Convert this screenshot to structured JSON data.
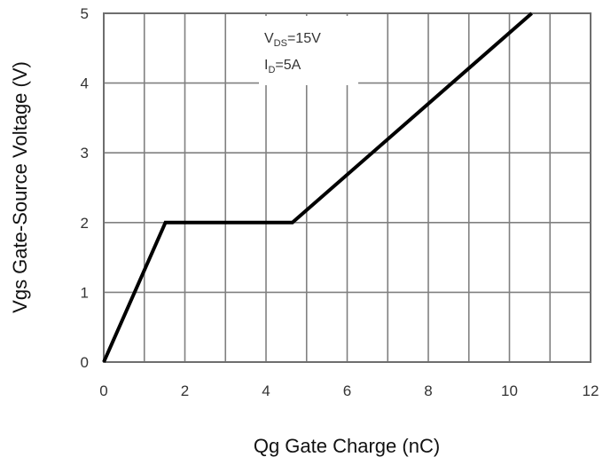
{
  "chart_data": {
    "type": "line",
    "title": "",
    "xlabel": "Qg Gate Charge (nC)",
    "ylabel": "Vgs Gate-Source Voltage (V)",
    "xlim": [
      0,
      12
    ],
    "ylim": [
      0,
      5
    ],
    "xticks": [
      0,
      2,
      4,
      6,
      8,
      10,
      12
    ],
    "yticks": [
      0,
      1,
      2,
      3,
      4,
      5
    ],
    "grid": true,
    "grid_minor_x_step": 1,
    "series": [
      {
        "name": "",
        "color": "#000000",
        "x": [
          0,
          1.52,
          4.65,
          10.55
        ],
        "y": [
          0,
          2.0,
          2.0,
          5.0
        ]
      }
    ],
    "annotations": [
      {
        "main": "V",
        "sub": "DS",
        "rest": "=15V"
      },
      {
        "main": "I",
        "sub": "D",
        "rest": "=5A"
      }
    ]
  }
}
